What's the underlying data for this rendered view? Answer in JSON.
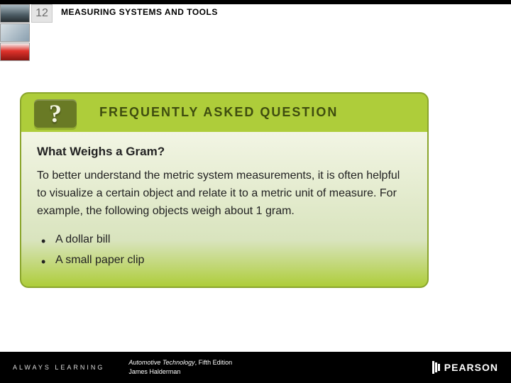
{
  "header": {
    "chapter_number": "12",
    "chapter_title": "MEASURING SYSTEMS AND TOOLS",
    "title_fontsize": 12,
    "title_color": "#000000",
    "chapter_bg": "#e4e4e4",
    "chapter_fg": "#6a6a6a"
  },
  "faq": {
    "tab_color": "#aecd3a",
    "tab_border_color": "#8aa52c",
    "icon_bg": "#697a25",
    "icon_glyph": "?",
    "icon_glyph_color": "#f2f5e0",
    "label": "FREQUENTLY ASKED QUESTION",
    "label_color": "#3f4d0f",
    "body_gradient_top": "#f2f5e4",
    "body_gradient_mid": "#d9e4be",
    "body_gradient_bottom": "#aecd3a",
    "question": "What Weighs a Gram?",
    "body_text": "To better understand the metric system measurements, it is often helpful to visualize a certain object and relate it to a metric unit of measure. For example, the following objects weigh about 1 gram.",
    "bullets": [
      "A dollar bill",
      "A small paper clip"
    ],
    "text_color": "#222222",
    "text_fontsize": 16,
    "question_fontsize": 17
  },
  "footer": {
    "tagline": "ALWAYS LEARNING",
    "book_title": "Automotive Technology",
    "book_edition": ", Fifth Edition",
    "author": "James Halderman",
    "brand": "PEARSON",
    "bg_color": "#000000",
    "text_color": "#ffffff"
  }
}
